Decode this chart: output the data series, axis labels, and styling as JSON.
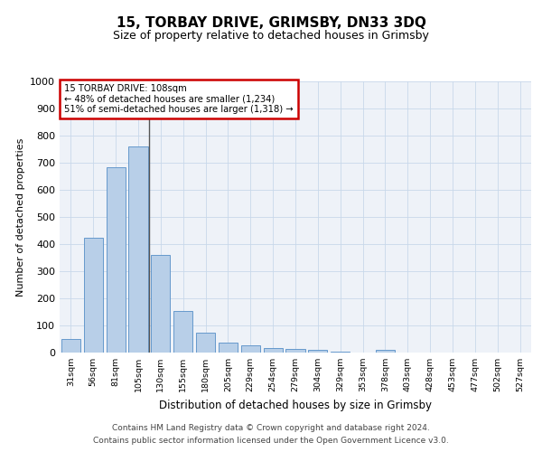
{
  "title": "15, TORBAY DRIVE, GRIMSBY, DN33 3DQ",
  "subtitle": "Size of property relative to detached houses in Grimsby",
  "xlabel": "Distribution of detached houses by size in Grimsby",
  "ylabel": "Number of detached properties",
  "categories": [
    "31sqm",
    "56sqm",
    "81sqm",
    "105sqm",
    "130sqm",
    "155sqm",
    "180sqm",
    "205sqm",
    "229sqm",
    "254sqm",
    "279sqm",
    "304sqm",
    "329sqm",
    "353sqm",
    "378sqm",
    "403sqm",
    "428sqm",
    "453sqm",
    "477sqm",
    "502sqm",
    "527sqm"
  ],
  "values": [
    50,
    425,
    685,
    760,
    360,
    153,
    75,
    38,
    27,
    18,
    15,
    10,
    5,
    0,
    10,
    0,
    0,
    0,
    0,
    0,
    0
  ],
  "bar_color": "#b8cfe8",
  "bar_edge_color": "#6699cc",
  "annotation_text_line1": "15 TORBAY DRIVE: 108sqm",
  "annotation_text_line2": "← 48% of detached houses are smaller (1,234)",
  "annotation_text_line3": "51% of semi-detached houses are larger (1,318) →",
  "annotation_box_color": "#ffffff",
  "annotation_box_edge_color": "#cc0000",
  "vline_x": 3.5,
  "vline_color": "#555555",
  "grid_color": "#c8d8ea",
  "background_color": "#eef2f8",
  "ylim": [
    0,
    1000
  ],
  "yticks": [
    0,
    100,
    200,
    300,
    400,
    500,
    600,
    700,
    800,
    900,
    1000
  ],
  "footer_line1": "Contains HM Land Registry data © Crown copyright and database right 2024.",
  "footer_line2": "Contains public sector information licensed under the Open Government Licence v3.0."
}
